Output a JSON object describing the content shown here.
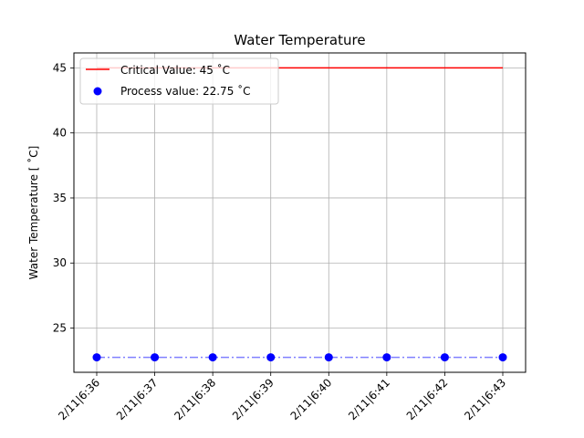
{
  "chart_data": {
    "type": "line",
    "title": "Water Temperature",
    "xlabel": "",
    "ylabel": "Water Temperature  [$^{\\circ}C$]",
    "ylabel_display": "Water Temperature  [ ˚C]",
    "categories": [
      "2/11|6:36",
      "2/11|6:37",
      "2/11|6:38",
      "2/11|6:39",
      "2/11|6:40",
      "2/11|6:41",
      "2/11|6:42",
      "2/11|6:43"
    ],
    "yticks": [
      25,
      30,
      35,
      40,
      45
    ],
    "ylim": [
      21.6,
      46.15
    ],
    "grid": true,
    "legend_position": "top-left",
    "series": [
      {
        "name": "Critical Value: 45 ˚C",
        "style": "solid-line",
        "color": "#ff0000",
        "values": [
          45,
          45,
          45,
          45,
          45,
          45,
          45,
          45
        ]
      },
      {
        "name": "Process value: 22.75 ˚C",
        "style": "dashdot-line-with-markers",
        "color": "#0000ff",
        "line_color": "#8080ff",
        "values": [
          22.75,
          22.75,
          22.75,
          22.75,
          22.75,
          22.75,
          22.75,
          22.75
        ]
      }
    ]
  }
}
